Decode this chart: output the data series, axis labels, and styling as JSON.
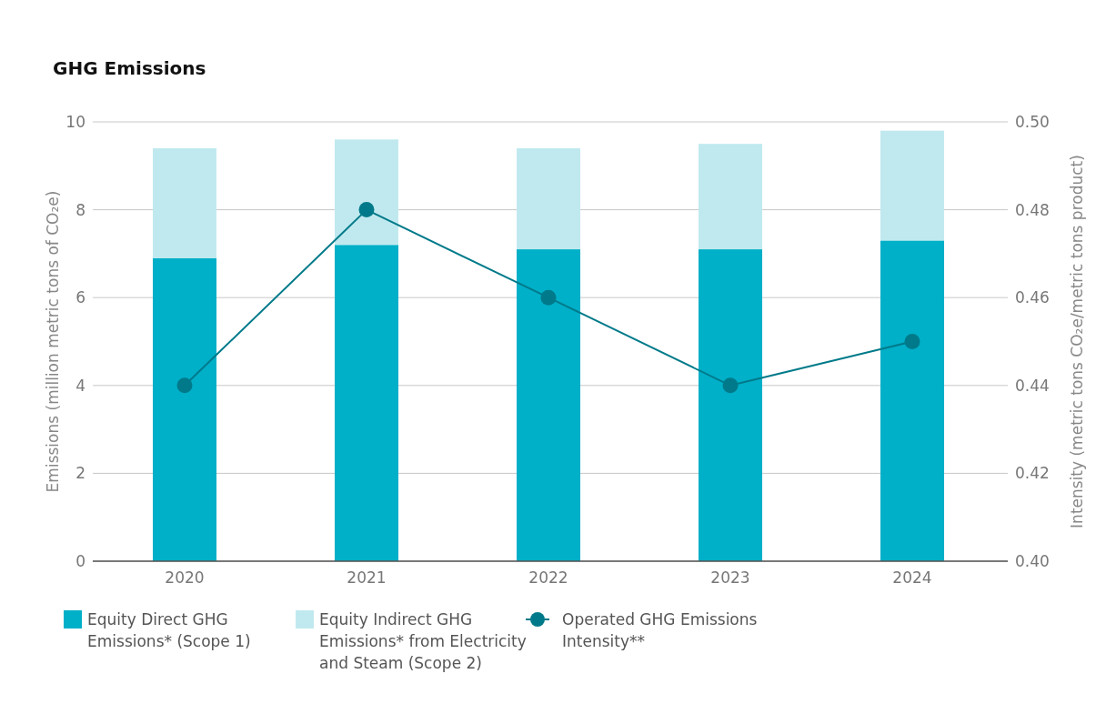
{
  "chart_data": {
    "type": "bar",
    "title": "GHG Emissions",
    "categories": [
      "2020",
      "2021",
      "2022",
      "2023",
      "2024"
    ],
    "stacked": true,
    "series": [
      {
        "name": "Equity Direct GHG Emissions* (Scope 1)",
        "color": "#00afc8",
        "values": [
          6.9,
          7.2,
          7.1,
          7.1,
          7.3
        ]
      },
      {
        "name": "Equity Indirect GHG Emissions* from Electricity and Steam (Scope 2)",
        "color": "#c0e9ef",
        "values": [
          2.5,
          2.4,
          2.3,
          2.4,
          2.5
        ]
      },
      {
        "name": "Operated GHG Emissions Intensity**",
        "color": "#007a8a",
        "type": "line",
        "axis": "y2",
        "marker": "circle",
        "values": [
          0.44,
          0.48,
          0.46,
          0.44,
          0.45
        ]
      }
    ],
    "ylabel": "Emissions (million metric tons of CO₂e)",
    "y2label": "Intensity (metric tons CO₂e/metric tons product)",
    "ylim": [
      0,
      10
    ],
    "yticks": [
      0,
      2,
      4,
      6,
      8,
      10
    ],
    "y2lim": [
      0.4,
      0.5
    ],
    "y2ticks": [
      {
        "value": 0.4,
        "label": "0.40"
      },
      0.42,
      0.44,
      0.46,
      0.48,
      {
        "value": 0.5,
        "label": "0.50"
      }
    ],
    "grid": "y",
    "legend": "bottom"
  }
}
